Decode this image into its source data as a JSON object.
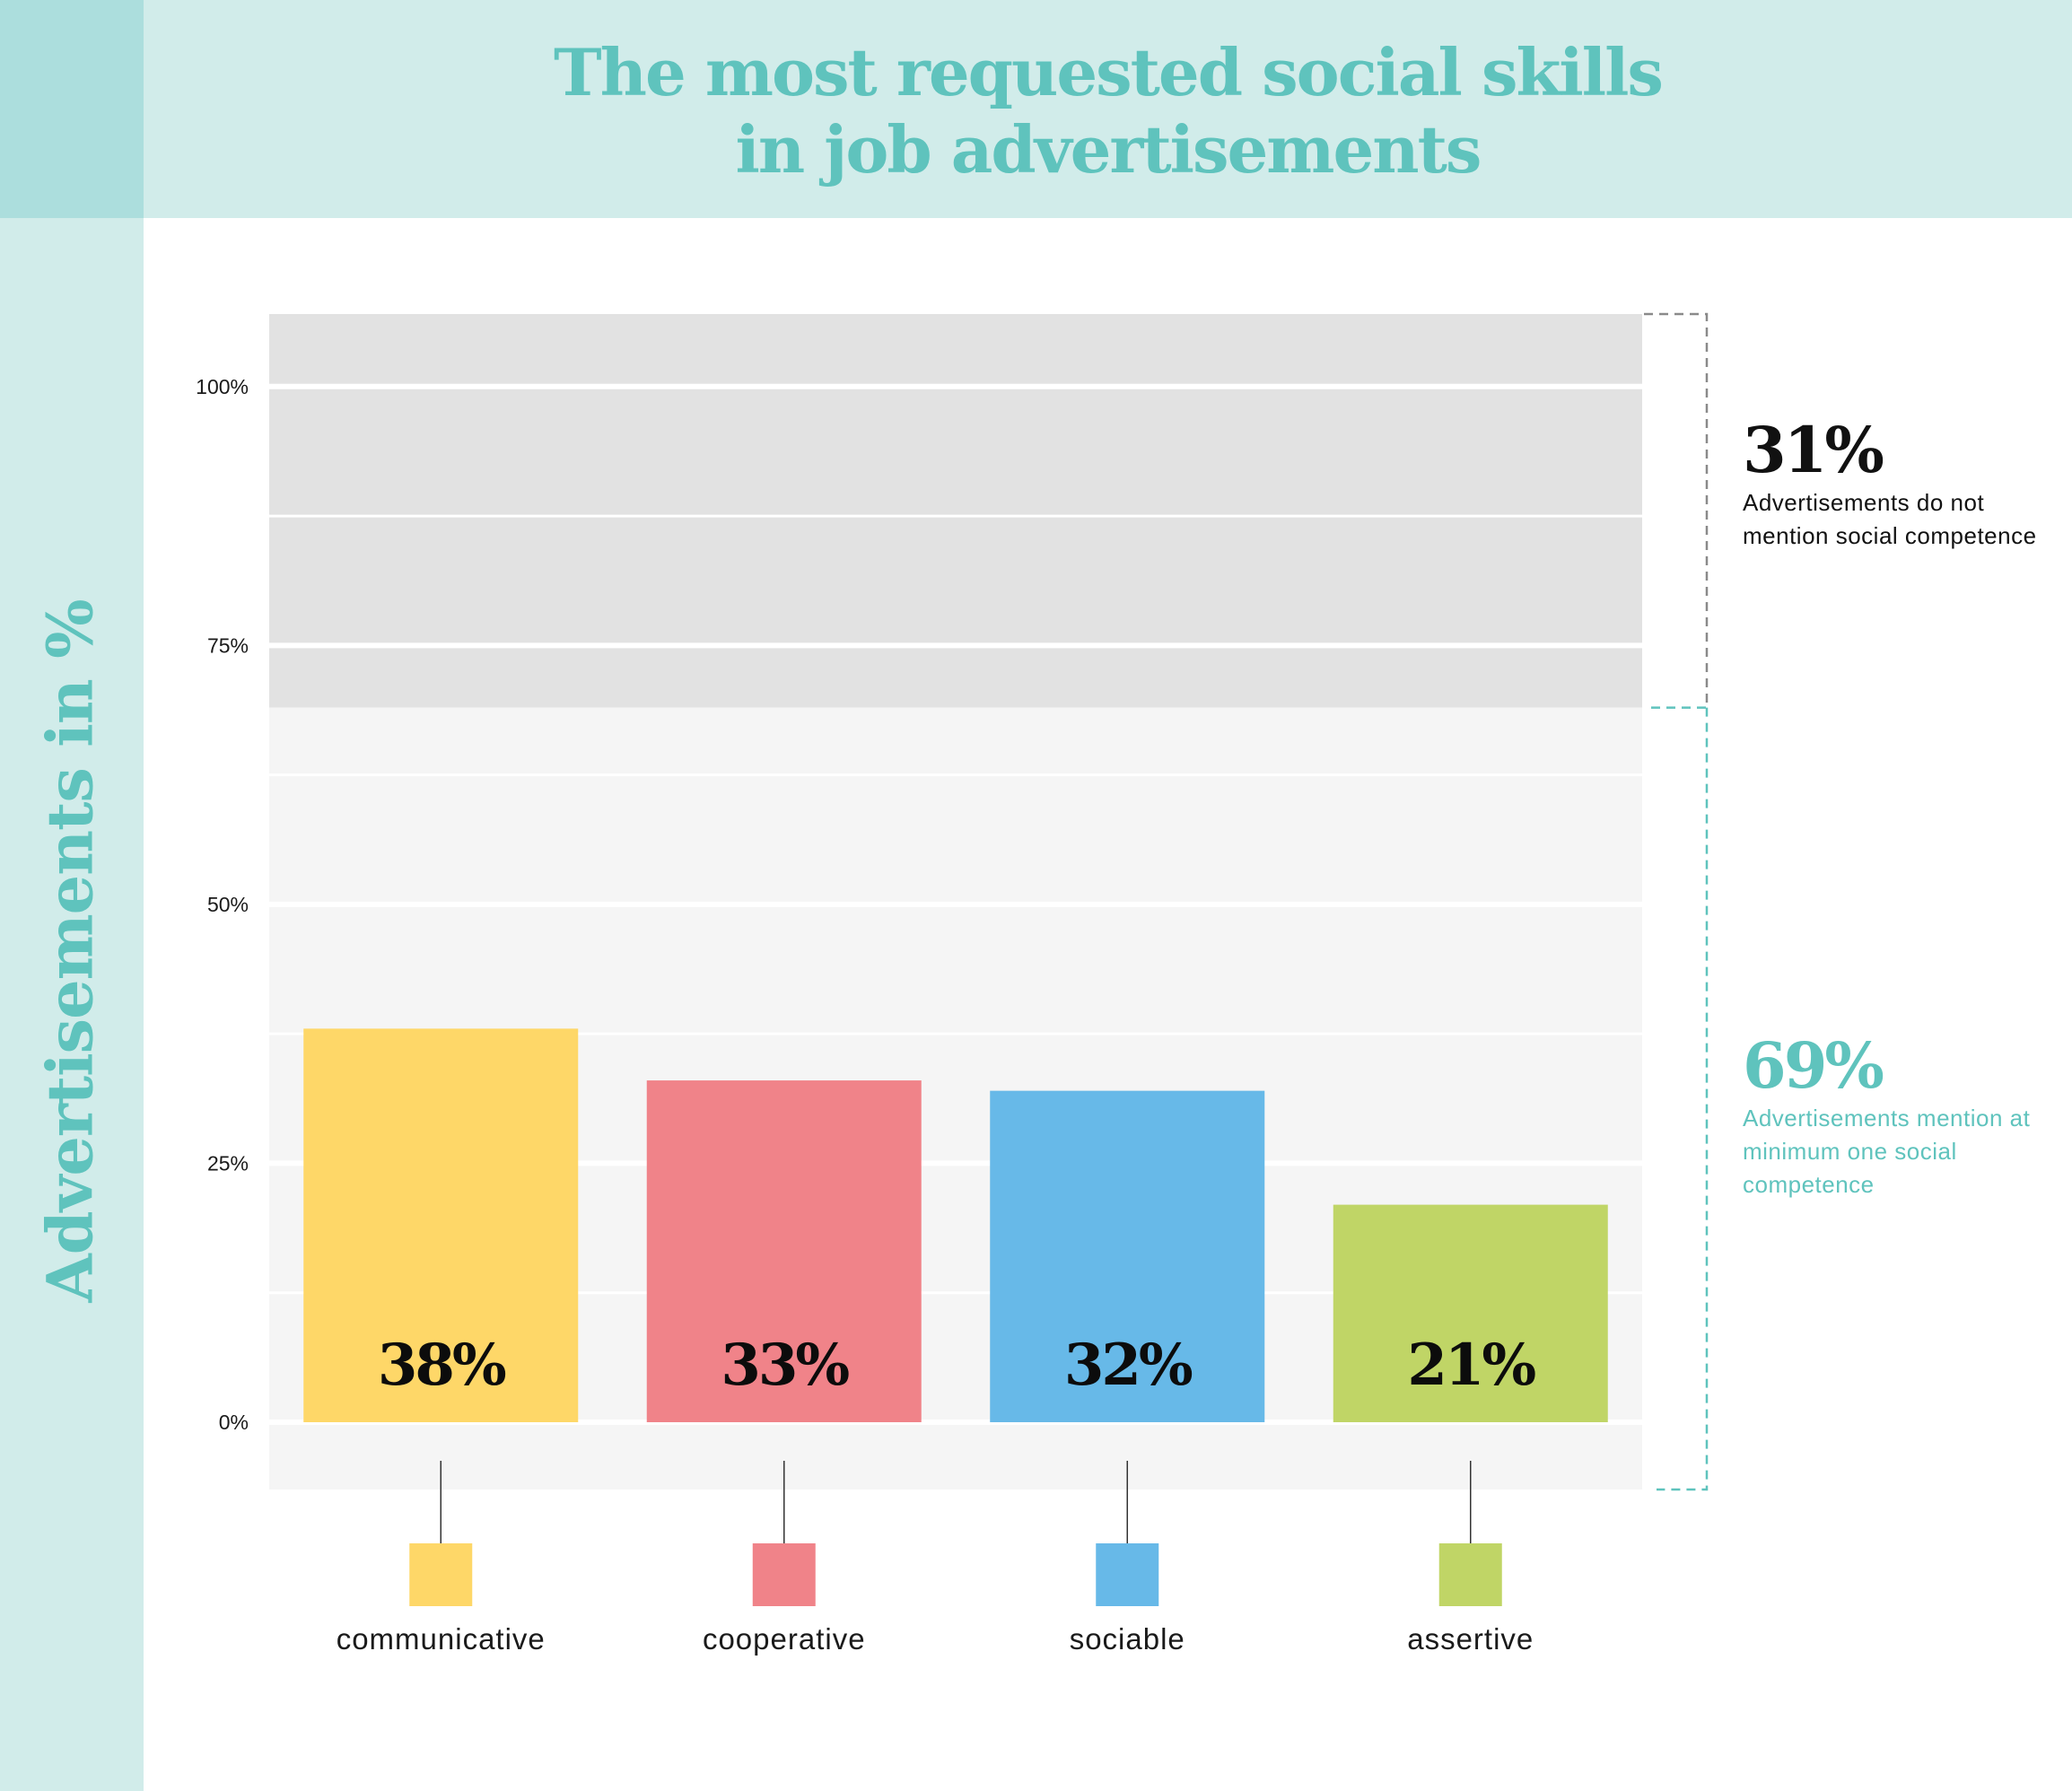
{
  "header": {
    "title_line1": "The most requested social skills",
    "title_line2": "in job advertisements"
  },
  "colors": {
    "teal": "#5fc3bd",
    "header_bg": "#d1ecea",
    "corner_bg": "#acdedd",
    "grey_band": "#e2e2e2",
    "light_band": "#f5f5f5"
  },
  "annotations": {
    "not_mention": {
      "value": "31%",
      "text": "Advertisements do not mention social competence",
      "color": "#111111"
    },
    "mention": {
      "value": "69%",
      "text": "Advertisements mention at minimum one social competence",
      "color": "#5fc3bd"
    }
  },
  "chart_data": {
    "type": "bar",
    "ylabel": "Advertisements in %",
    "ylim": [
      -6.5,
      107
    ],
    "yticks": [
      {
        "value": 0,
        "label": "0%"
      },
      {
        "value": 25,
        "label": "25%"
      },
      {
        "value": 50,
        "label": "50%"
      },
      {
        "value": 75,
        "label": "75%"
      },
      {
        "value": 100,
        "label": "100%"
      }
    ],
    "grid": true,
    "grid_step": 12.5,
    "shaded_region_from": 69,
    "categories": [
      "communicative",
      "cooperative",
      "sociable",
      "assertive"
    ],
    "values": [
      38,
      33,
      32,
      21
    ],
    "value_labels": [
      "38%",
      "33%",
      "32%",
      "21%"
    ],
    "colors": [
      "#fed768",
      "#f08389",
      "#67b9e8",
      "#c0d566"
    ],
    "legend_placement": "bottom"
  }
}
